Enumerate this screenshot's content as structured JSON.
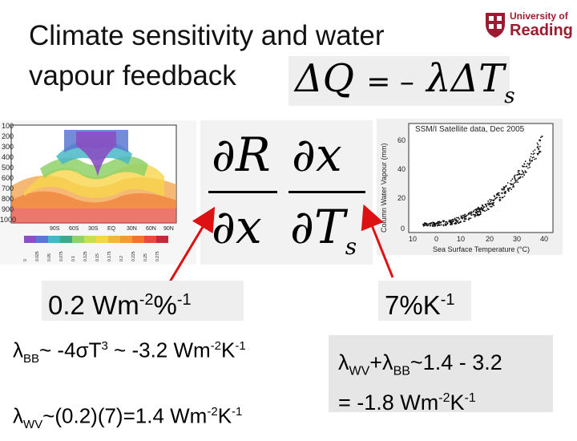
{
  "slide": {
    "title_line1": "Climate sensitivity and water",
    "title_line2": "vapour feedback"
  },
  "logo": {
    "line1": "University of",
    "line2": "Reading",
    "icon": "shield-crest-icon",
    "color": "#9b1b30"
  },
  "equation": {
    "lhs": "ΔQ",
    "equals": "= –",
    "rhs": "λΔT",
    "rhs_sub": "s"
  },
  "partials": {
    "num1": "∂R",
    "den1": "∂x",
    "num2": "∂x",
    "den2": "∂T",
    "den2_sub": "s"
  },
  "labels": {
    "left_value": "0.2 Wm",
    "left_exp1": "-2",
    "left_mid": "%",
    "left_exp2": "-1",
    "right_value": "7%K",
    "right_exp": "-1"
  },
  "kernel_plot": {
    "y_ticks": [
      "100",
      "200",
      "300",
      "400",
      "500",
      "600",
      "700",
      "800",
      "900",
      "1000"
    ],
    "x_ticks": [
      "90S",
      "60S",
      "30S",
      "EQ",
      "30N",
      "60N",
      "90N"
    ],
    "colorbar_ticks": [
      "0",
      "0.025",
      "0.05",
      "0.075",
      "0.1",
      "0.125",
      "0.15",
      "0.175",
      "0.2",
      "0.225",
      "0.25",
      "0.275"
    ]
  },
  "scatter_plot": {
    "title": "SSM/I Satellite data, Dec 2005",
    "ylabel": "Column Water Vapour (mm)",
    "xlabel": "Sea Surface Temperature (°C)",
    "y_ticks": [
      "60",
      "40",
      "20",
      "0"
    ],
    "x_ticks": [
      "10",
      "0",
      "10",
      "20",
      "30",
      "40"
    ]
  },
  "bottom": {
    "bb_prefix": "λ",
    "bb_sub": "BB",
    "bb_text": "~ -4σT",
    "bb_exp3": "3",
    "bb_text2": " ~ -3.2 Wm",
    "bb_exp_a": "-2",
    "bb_k": "K",
    "bb_exp_b": "-1",
    "wv_prefix": "λ",
    "wv_sub": "WV",
    "wv_text": "~(0.2)(7)=1.4 Wm",
    "wv_exp_a": "-2",
    "wv_k": "K",
    "wv_exp_b": "-1",
    "sum_l1": "λ",
    "sum_sub1": "WV",
    "sum_plus": "+λ",
    "sum_sub2": "BB",
    "sum_tail": "~1.4 - 3.2",
    "sum_l2": "= -1.8 Wm",
    "sum_exp_a": "-2",
    "sum_k": "K",
    "sum_exp_b": "-1"
  },
  "colors": {
    "arrow": "#dd1111",
    "scatter_points": "#111111"
  }
}
